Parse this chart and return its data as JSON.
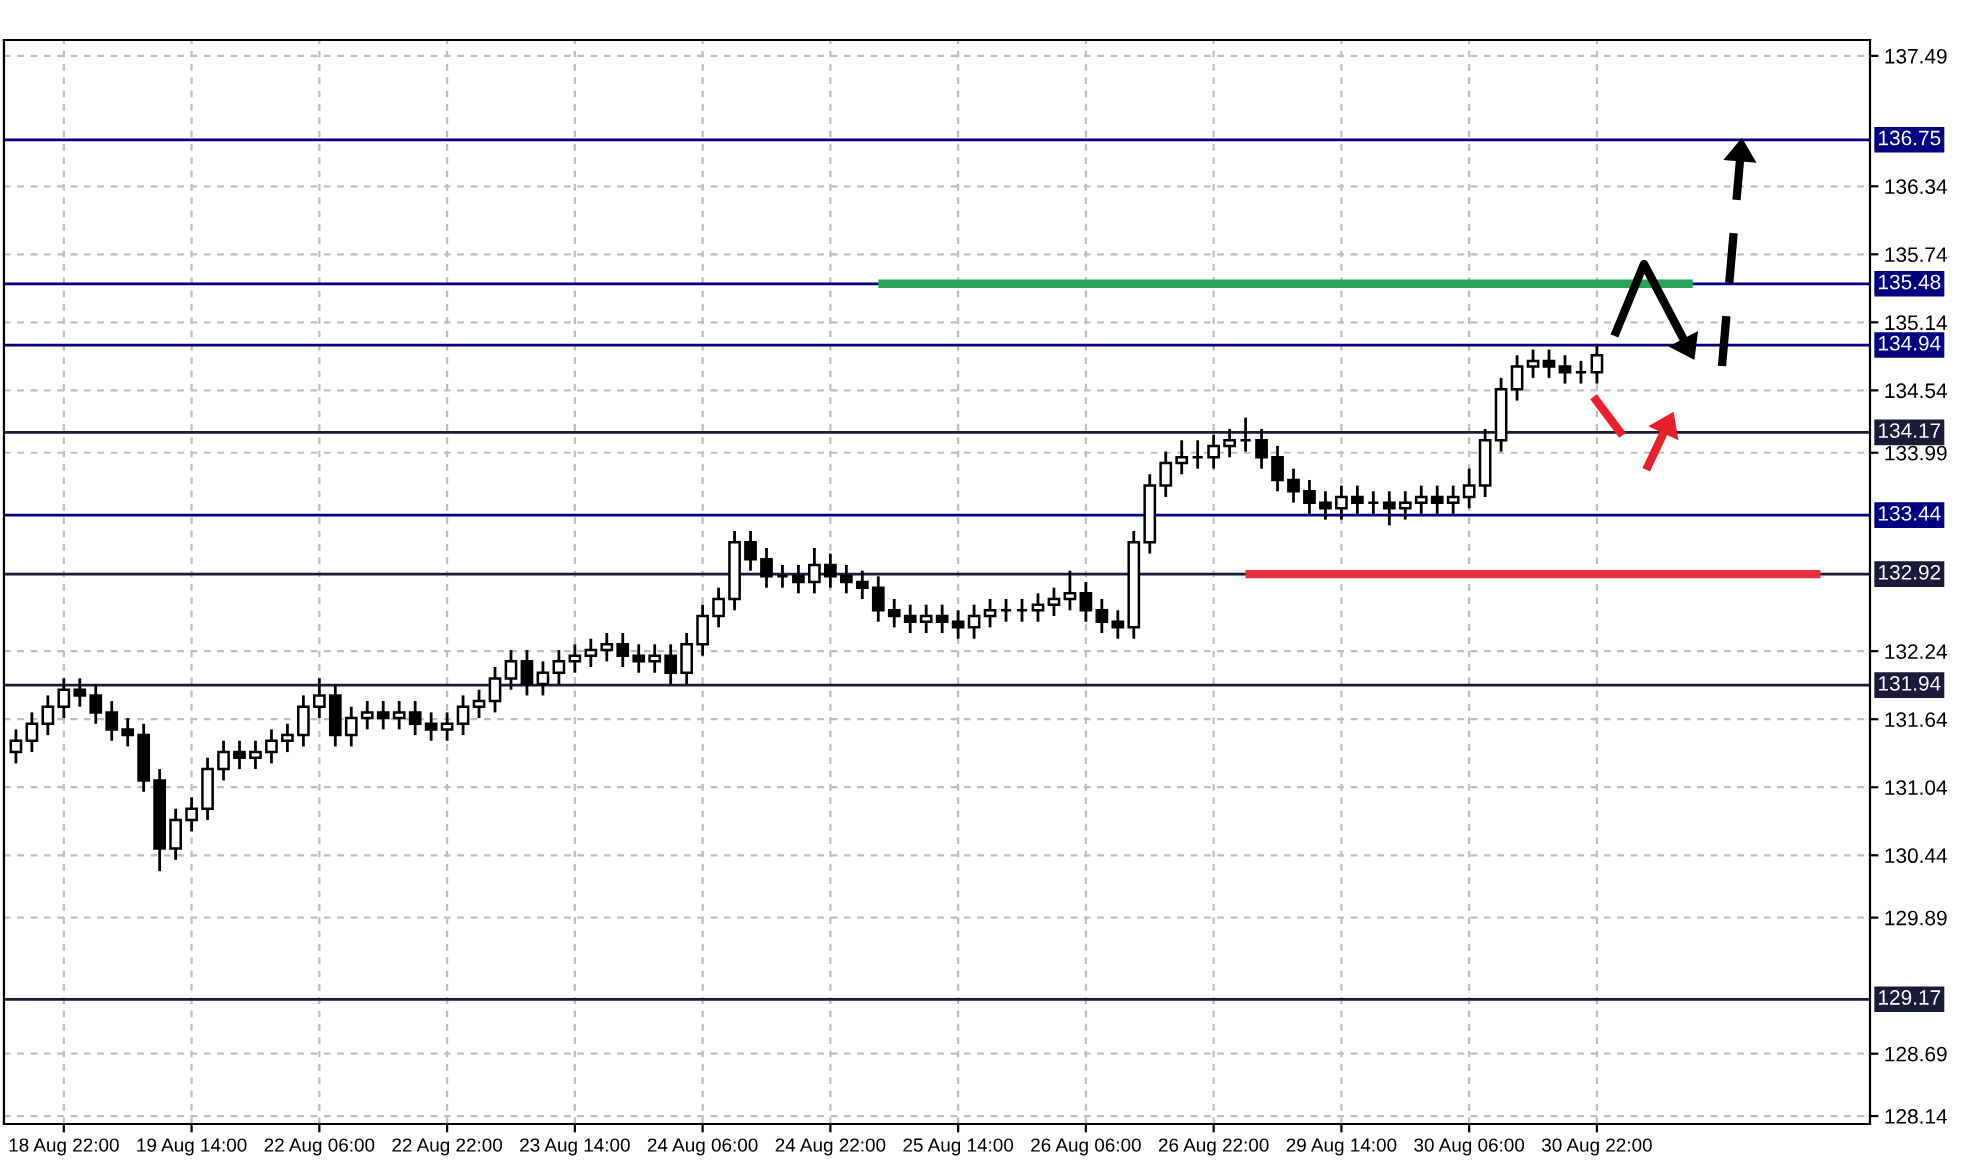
{
  "chart_data": {
    "type": "candlestick",
    "categories": [
      null,
      null,
      null,
      "18 Aug 22:00",
      null,
      null,
      null,
      null,
      null,
      null,
      null,
      "19 Aug 14:00",
      null,
      null,
      null,
      null,
      null,
      null,
      null,
      "22 Aug 06:00",
      null,
      null,
      null,
      null,
      null,
      null,
      null,
      "22 Aug 22:00",
      null,
      null,
      null,
      null,
      null,
      null,
      null,
      "23 Aug 14:00",
      null,
      null,
      null,
      null,
      null,
      null,
      null,
      "24 Aug 06:00",
      null,
      null,
      null,
      null,
      null,
      null,
      null,
      "24 Aug 22:00",
      null,
      null,
      null,
      null,
      null,
      null,
      null,
      "25 Aug 14:00",
      null,
      null,
      null,
      null,
      null,
      null,
      null,
      "26 Aug 06:00",
      null,
      null,
      null,
      null,
      null,
      null,
      null,
      "26 Aug 22:00",
      null,
      null,
      null,
      null,
      null,
      null,
      null,
      "29 Aug 14:00",
      null,
      null,
      null,
      null,
      null,
      null,
      null,
      "30 Aug 06:00",
      null,
      null,
      null,
      null,
      null,
      null,
      null,
      "30 Aug 22:00",
      null,
      null,
      null,
      null,
      null,
      null,
      null,
      null,
      null,
      null,
      null,
      null,
      null,
      null,
      null,
      null,
      null
    ],
    "ohlc": [
      [
        131.35,
        131.55,
        131.25,
        131.45
      ],
      [
        131.45,
        131.7,
        131.35,
        131.6
      ],
      [
        131.6,
        131.85,
        131.5,
        131.75
      ],
      [
        131.75,
        132.0,
        131.65,
        131.9
      ],
      [
        131.9,
        132.0,
        131.75,
        131.85
      ],
      [
        131.85,
        131.95,
        131.6,
        131.7
      ],
      [
        131.7,
        131.8,
        131.45,
        131.55
      ],
      [
        131.55,
        131.65,
        131.4,
        131.5
      ],
      [
        131.5,
        131.6,
        131.0,
        131.1
      ],
      [
        131.1,
        131.2,
        130.3,
        130.5
      ],
      [
        130.5,
        130.85,
        130.4,
        130.75
      ],
      [
        130.75,
        130.95,
        130.65,
        130.85
      ],
      [
        130.85,
        131.3,
        130.75,
        131.2
      ],
      [
        131.2,
        131.45,
        131.1,
        131.35
      ],
      [
        131.35,
        131.45,
        131.2,
        131.3
      ],
      [
        131.3,
        131.45,
        131.2,
        131.35
      ],
      [
        131.35,
        131.55,
        131.25,
        131.45
      ],
      [
        131.45,
        131.6,
        131.35,
        131.5
      ],
      [
        131.5,
        131.85,
        131.4,
        131.75
      ],
      [
        131.75,
        132.0,
        131.65,
        131.85
      ],
      [
        131.85,
        131.95,
        131.4,
        131.5
      ],
      [
        131.5,
        131.75,
        131.4,
        131.65
      ],
      [
        131.65,
        131.8,
        131.55,
        131.7
      ],
      [
        131.7,
        131.8,
        131.55,
        131.65
      ],
      [
        131.65,
        131.8,
        131.55,
        131.7
      ],
      [
        131.7,
        131.8,
        131.5,
        131.6
      ],
      [
        131.6,
        131.7,
        131.45,
        131.55
      ],
      [
        131.55,
        131.7,
        131.45,
        131.6
      ],
      [
        131.6,
        131.85,
        131.5,
        131.75
      ],
      [
        131.75,
        131.9,
        131.65,
        131.8
      ],
      [
        131.8,
        132.1,
        131.7,
        132.0
      ],
      [
        132.0,
        132.25,
        131.9,
        132.15
      ],
      [
        132.15,
        132.25,
        131.85,
        131.95
      ],
      [
        131.95,
        132.15,
        131.85,
        132.05
      ],
      [
        132.05,
        132.25,
        131.95,
        132.15
      ],
      [
        132.15,
        132.3,
        132.05,
        132.2
      ],
      [
        132.2,
        132.35,
        132.1,
        132.25
      ],
      [
        132.25,
        132.4,
        132.15,
        132.3
      ],
      [
        132.3,
        132.4,
        132.1,
        132.2
      ],
      [
        132.2,
        132.3,
        132.05,
        132.15
      ],
      [
        132.15,
        132.3,
        132.05,
        132.2
      ],
      [
        132.2,
        132.3,
        131.95,
        132.05
      ],
      [
        132.05,
        132.4,
        131.95,
        132.3
      ],
      [
        132.3,
        132.65,
        132.2,
        132.55
      ],
      [
        132.55,
        132.8,
        132.45,
        132.7
      ],
      [
        132.7,
        133.3,
        132.6,
        133.2
      ],
      [
        133.2,
        133.3,
        132.95,
        133.05
      ],
      [
        133.05,
        133.15,
        132.8,
        132.9
      ],
      [
        132.9,
        133.0,
        132.8,
        132.9
      ],
      [
        132.9,
        133.0,
        132.75,
        132.85
      ],
      [
        132.85,
        133.15,
        132.75,
        133.0
      ],
      [
        133.0,
        133.1,
        132.8,
        132.9
      ],
      [
        132.9,
        133.0,
        132.75,
        132.85
      ],
      [
        132.85,
        132.95,
        132.7,
        132.8
      ],
      [
        132.8,
        132.9,
        132.5,
        132.6
      ],
      [
        132.6,
        132.7,
        132.45,
        132.55
      ],
      [
        132.55,
        132.65,
        132.4,
        132.5
      ],
      [
        132.5,
        132.65,
        132.4,
        132.55
      ],
      [
        132.55,
        132.65,
        132.4,
        132.5
      ],
      [
        132.5,
        132.6,
        132.35,
        132.45
      ],
      [
        132.45,
        132.65,
        132.35,
        132.55
      ],
      [
        132.55,
        132.7,
        132.45,
        132.6
      ],
      [
        132.6,
        132.7,
        132.5,
        132.6
      ],
      [
        132.6,
        132.7,
        132.5,
        132.6
      ],
      [
        132.6,
        132.75,
        132.5,
        132.65
      ],
      [
        132.65,
        132.8,
        132.55,
        132.7
      ],
      [
        132.7,
        132.95,
        132.6,
        132.75
      ],
      [
        132.75,
        132.85,
        132.5,
        132.6
      ],
      [
        132.6,
        132.7,
        132.4,
        132.5
      ],
      [
        132.5,
        132.6,
        132.35,
        132.45
      ],
      [
        132.45,
        133.3,
        132.35,
        133.2
      ],
      [
        133.2,
        133.8,
        133.1,
        133.7
      ],
      [
        133.7,
        134.0,
        133.6,
        133.9
      ],
      [
        133.9,
        134.1,
        133.8,
        133.95
      ],
      [
        133.95,
        134.1,
        133.85,
        133.95
      ],
      [
        133.95,
        134.15,
        133.85,
        134.05
      ],
      [
        134.05,
        134.2,
        133.95,
        134.1
      ],
      [
        134.1,
        134.3,
        134.0,
        134.1
      ],
      [
        134.1,
        134.2,
        133.85,
        133.95
      ],
      [
        133.95,
        134.05,
        133.65,
        133.75
      ],
      [
        133.75,
        133.85,
        133.55,
        133.65
      ],
      [
        133.65,
        133.75,
        133.45,
        133.55
      ],
      [
        133.55,
        133.65,
        133.4,
        133.5
      ],
      [
        133.5,
        133.7,
        133.4,
        133.6
      ],
      [
        133.6,
        133.7,
        133.45,
        133.55
      ],
      [
        133.55,
        133.65,
        133.45,
        133.55
      ],
      [
        133.55,
        133.65,
        133.35,
        133.5
      ],
      [
        133.5,
        133.65,
        133.4,
        133.55
      ],
      [
        133.55,
        133.7,
        133.45,
        133.6
      ],
      [
        133.6,
        133.7,
        133.45,
        133.55
      ],
      [
        133.55,
        133.7,
        133.45,
        133.6
      ],
      [
        133.6,
        133.85,
        133.5,
        133.7
      ],
      [
        133.7,
        134.2,
        133.6,
        134.1
      ],
      [
        134.1,
        134.65,
        134.0,
        134.55
      ],
      [
        134.55,
        134.85,
        134.45,
        134.75
      ],
      [
        134.75,
        134.9,
        134.65,
        134.8
      ],
      [
        134.8,
        134.9,
        134.65,
        134.75
      ],
      [
        134.75,
        134.85,
        134.6,
        134.7
      ],
      [
        134.7,
        134.8,
        134.6,
        134.7
      ],
      [
        134.7,
        134.95,
        134.6,
        134.85
      ],
      null,
      null,
      null,
      null,
      null,
      null,
      null,
      null,
      null,
      null,
      null,
      null,
      null,
      null,
      null,
      null,
      null
    ],
    "series": [
      {
        "type": "line",
        "color": "#26a65b",
        "values": [
          null,
          null,
          null,
          null,
          null,
          null,
          null,
          null,
          null,
          null,
          null,
          null,
          null,
          null,
          null,
          null,
          null,
          null,
          null,
          null,
          null,
          null,
          null,
          null,
          null,
          null,
          null,
          null,
          null,
          null,
          null,
          null,
          null,
          null,
          null,
          null,
          null,
          null,
          null,
          null,
          null,
          null,
          null,
          null,
          null,
          null,
          null,
          null,
          null,
          null,
          null,
          null,
          null,
          null,
          135.48,
          135.48,
          135.48,
          135.48,
          135.48,
          135.48,
          135.48,
          135.48,
          135.48,
          135.48,
          135.48,
          135.48,
          135.48,
          135.48,
          135.48,
          135.48,
          135.48,
          135.48,
          135.48,
          135.48,
          135.48,
          135.48,
          135.48,
          135.48,
          135.48,
          135.48,
          135.48,
          135.48,
          135.48,
          135.48,
          135.48,
          135.48,
          135.48,
          135.48,
          135.48,
          135.48,
          135.48,
          135.48,
          135.48,
          135.48,
          135.48,
          135.48,
          135.48,
          135.48,
          135.48,
          135.48,
          135.48,
          135.48,
          135.48,
          135.48,
          135.48,
          135.48,
          null,
          null,
          null,
          null,
          null,
          null,
          null,
          null,
          null,
          null,
          null
        ]
      },
      {
        "type": "line",
        "color": "#e8303a",
        "values": [
          null,
          null,
          null,
          null,
          null,
          null,
          null,
          null,
          null,
          null,
          null,
          null,
          null,
          null,
          null,
          null,
          null,
          null,
          null,
          null,
          null,
          null,
          null,
          null,
          null,
          null,
          null,
          null,
          null,
          null,
          null,
          null,
          null,
          null,
          null,
          null,
          null,
          null,
          null,
          null,
          null,
          null,
          null,
          null,
          null,
          null,
          null,
          null,
          null,
          null,
          null,
          null,
          null,
          null,
          null,
          null,
          null,
          null,
          null,
          null,
          null,
          null,
          null,
          null,
          null,
          null,
          null,
          null,
          null,
          null,
          null,
          null,
          null,
          null,
          null,
          null,
          null,
          132.92,
          132.92,
          132.92,
          132.92,
          132.92,
          132.92,
          132.92,
          132.92,
          132.92,
          132.92,
          132.92,
          132.92,
          132.92,
          132.92,
          132.92,
          132.92,
          132.92,
          132.92,
          132.92,
          132.92,
          132.92,
          132.92,
          132.92,
          132.92,
          132.92,
          132.92,
          132.92,
          132.92,
          132.92,
          132.92,
          132.92,
          132.92,
          132.92,
          132.92,
          132.92,
          132.92,
          132.92,
          null,
          null,
          null
        ]
      }
    ],
    "ylim": [
      128.07,
      137.63
    ],
    "yticks": [
      137.49,
      136.34,
      135.74,
      135.14,
      134.54,
      133.99,
      132.24,
      131.64,
      131.04,
      130.44,
      129.89,
      128.69,
      128.14
    ],
    "ref_lines": [
      {
        "axis": "y",
        "value": 136.75,
        "label": "136.75",
        "color": "#000080"
      },
      {
        "axis": "y",
        "value": 135.48,
        "label": "135.48",
        "color": "#000080"
      },
      {
        "axis": "y",
        "value": 134.94,
        "label": "134.94",
        "color": "#000080"
      },
      {
        "axis": "y",
        "value": 134.17,
        "label": "134.17",
        "color": "#1a1a3a"
      },
      {
        "axis": "y",
        "value": 133.44,
        "label": "133.44",
        "color": "#000080"
      },
      {
        "axis": "y",
        "value": 132.92,
        "label": "132.92",
        "color": "#1a1a3a"
      },
      {
        "axis": "y",
        "value": 131.94,
        "label": "131.94",
        "color": "#1a1a3a"
      },
      {
        "axis": "y",
        "value": 129.17,
        "label": "129.17",
        "color": "#1a1a3a"
      }
    ],
    "grid": true
  }
}
